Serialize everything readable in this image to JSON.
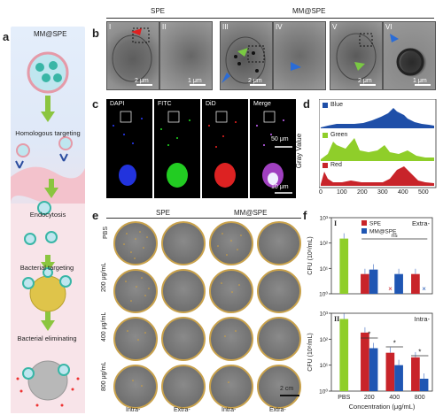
{
  "panel_letters": {
    "a": "a",
    "b": "b",
    "c": "c",
    "d": "d",
    "e": "e",
    "f": "f"
  },
  "panel_a": {
    "title": "MM@SPE",
    "steps": [
      "Homologous targeting",
      "Endocytosis",
      "Bacterial targeting",
      "Bacterial eliminating"
    ]
  },
  "panel_b": {
    "header_spe": "SPE",
    "header_mmspe": "MM@SPE",
    "roman": [
      "I",
      "II",
      "III",
      "IV",
      "V",
      "VI"
    ],
    "scales": [
      "2 μm",
      "1 μm",
      "2 μm",
      "2 μm",
      "1 μm"
    ]
  },
  "panel_c": {
    "channels": [
      "DAPI",
      "FITC",
      "DiD",
      "Merge"
    ],
    "scale_top": "50 μm",
    "scale_bottom": "10 μm",
    "colors": {
      "DAPI": "#2a3cff",
      "FITC": "#22dd22",
      "DiD": "#ee2222"
    }
  },
  "panel_d": {
    "ylabel": "Gray Value",
    "legend": [
      "Blue",
      "Green",
      "Red"
    ],
    "x_ticks": [
      "0",
      "100",
      "200",
      "300",
      "400",
      "500"
    ],
    "colors": {
      "Blue": "#1f4fa8",
      "Green": "#8fce2a",
      "Red": "#c8242a"
    }
  },
  "panel_e": {
    "col_groups": [
      "SPE",
      "MM@SPE"
    ],
    "rows": [
      "PBS",
      "200 μg/mL",
      "400 μg/mL",
      "800 μg/mL"
    ],
    "cols": [
      "Intra-",
      "Extra-",
      "Intra-",
      "Extra-"
    ],
    "scale": "2 cm"
  },
  "chart_data": [
    {
      "type": "bar",
      "panel": "I",
      "annotation": "Extra-",
      "ylabel": "CFU (10⁸/mL)",
      "y_ticks": [
        "10⁰",
        "10¹",
        "10²",
        "10³"
      ],
      "categories": [
        "PBS",
        "200",
        "400",
        "800"
      ],
      "series": [
        {
          "name": "SPE",
          "values": [
            null,
            6,
            0,
            6
          ]
        },
        {
          "name": "MM@SPE",
          "values": [
            null,
            9,
            6,
            0
          ]
        },
        {
          "name": "PBS",
          "values": [
            150,
            null,
            null,
            null
          ]
        }
      ],
      "sig_label": "ns"
    },
    {
      "type": "bar",
      "panel": "II",
      "annotation": "Intra-",
      "ylabel": "CFU (10⁸/mL)",
      "y_ticks": [
        "10⁰",
        "10¹",
        "10²",
        "10³"
      ],
      "xlabel": "Concentration (μg/mL)",
      "categories": [
        "PBS",
        "200",
        "400",
        "800"
      ],
      "series": [
        {
          "name": "SPE",
          "values": [
            null,
            180,
            30,
            20
          ]
        },
        {
          "name": "MM@SPE",
          "values": [
            null,
            45,
            10,
            3
          ]
        },
        {
          "name": "PBS",
          "values": [
            600,
            null,
            null,
            null
          ]
        }
      ],
      "sig_labels": [
        "*",
        "*",
        "*"
      ]
    }
  ]
}
